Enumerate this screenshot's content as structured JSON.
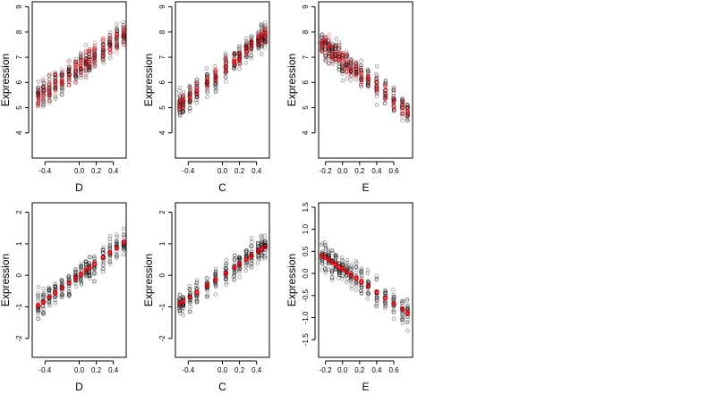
{
  "chart_data": [
    {
      "type": "scatter",
      "xlabel": "D",
      "ylabel": "Expression",
      "xlim": [
        -0.55,
        0.55
      ],
      "ylim": [
        3.0,
        9.2
      ],
      "xticks": [
        "-0.4",
        "0.0",
        "0.2",
        "0.4"
      ],
      "xtick_values": [
        -0.4,
        0,
        0.2,
        0.4
      ],
      "yticks": [
        "4",
        "5",
        "6",
        "7",
        "8",
        "9"
      ],
      "ytick_values": [
        4,
        5,
        6,
        7,
        8,
        9
      ],
      "colors": {
        "observed": "#000000",
        "fitted": "#e8141e"
      },
      "trend": {
        "kind": "linear",
        "intercept": 6.6,
        "slope": 2.4
      },
      "cluster_x": [
        -0.48,
        -0.42,
        -0.35,
        -0.28,
        -0.2,
        -0.12,
        -0.04,
        0.02,
        0.08,
        0.12,
        0.18,
        0.28,
        0.36,
        0.44,
        0.52
      ],
      "observed_spread": 0.85,
      "fitted_spread": 0.75,
      "points_per_cluster": 20
    },
    {
      "type": "scatter",
      "xlabel": "C",
      "ylabel": "Expression",
      "xlim": [
        -0.55,
        0.55
      ],
      "ylim": [
        3.0,
        9.2
      ],
      "xticks": [
        "-0.4",
        "0.0",
        "0.2",
        "0.4"
      ],
      "xtick_values": [
        -0.4,
        0,
        0.2,
        0.4
      ],
      "yticks": [
        "4",
        "5",
        "6",
        "7",
        "8",
        "9"
      ],
      "ytick_values": [
        4,
        5,
        6,
        7,
        8,
        9
      ],
      "colors": {
        "observed": "#000000",
        "fitted": "#e8141e"
      },
      "trend": {
        "kind": "linear",
        "intercept": 6.5,
        "slope": 2.8
      },
      "cluster_x": [
        -0.5,
        -0.46,
        -0.38,
        -0.3,
        -0.18,
        -0.08,
        0.04,
        0.14,
        0.2,
        0.28,
        0.34,
        0.42,
        0.46,
        0.5
      ],
      "observed_spread": 0.8,
      "fitted_spread": 0.5,
      "points_per_cluster": 22
    },
    {
      "type": "scatter",
      "xlabel": "E",
      "ylabel": "Expression",
      "xlim": [
        -0.28,
        0.82
      ],
      "ylim": [
        3.0,
        9.2
      ],
      "xticks": [
        "-0.2",
        "0.0",
        "0.2",
        "0.4",
        "0.6"
      ],
      "xtick_values": [
        -0.2,
        0,
        0.2,
        0.4,
        0.6
      ],
      "yticks": [
        "4",
        "5",
        "6",
        "7",
        "8",
        "9"
      ],
      "ytick_values": [
        4,
        5,
        6,
        7,
        8,
        9
      ],
      "colors": {
        "observed": "#000000",
        "fitted": "#e8141e"
      },
      "trend": {
        "kind": "linear",
        "intercept": 6.9,
        "slope": -2.7
      },
      "cluster_x": [
        -0.24,
        -0.2,
        -0.16,
        -0.12,
        -0.08,
        -0.04,
        0.0,
        0.05,
        0.1,
        0.16,
        0.22,
        0.3,
        0.4,
        0.5,
        0.6,
        0.7,
        0.76
      ],
      "observed_spread": 0.85,
      "fitted_spread": 0.6,
      "points_per_cluster": 18
    },
    {
      "type": "scatter",
      "xlabel": "D",
      "ylabel": "Expression",
      "xlim": [
        -0.55,
        0.55
      ],
      "ylim": [
        -2.6,
        2.3
      ],
      "xticks": [
        "-0.4",
        "0.0",
        "0.2",
        "0.4"
      ],
      "xtick_values": [
        -0.4,
        0,
        0.2,
        0.4
      ],
      "yticks": [
        "-2",
        "-1",
        "0",
        "1",
        "2"
      ],
      "ytick_values": [
        -2,
        -1,
        0,
        1,
        2
      ],
      "colors": {
        "observed": "#000000",
        "fitted": "#e8141e"
      },
      "trend": {
        "kind": "linear",
        "intercept": 0.0,
        "slope": 2.0
      },
      "cluster_x": [
        -0.48,
        -0.42,
        -0.35,
        -0.28,
        -0.2,
        -0.12,
        -0.04,
        0.02,
        0.08,
        0.12,
        0.18,
        0.28,
        0.36,
        0.44,
        0.52
      ],
      "observed_spread": 0.65,
      "fitted_spread": 0.06,
      "points_per_cluster": 20
    },
    {
      "type": "scatter",
      "xlabel": "C",
      "ylabel": "Expression",
      "xlim": [
        -0.55,
        0.55
      ],
      "ylim": [
        -2.6,
        2.3
      ],
      "xticks": [
        "-0.4",
        "0.0",
        "0.2",
        "0.4"
      ],
      "xtick_values": [
        -0.4,
        0,
        0.2,
        0.4
      ],
      "yticks": [
        "-2",
        "-1",
        "0",
        "1",
        "2"
      ],
      "ytick_values": [
        -2,
        -1,
        0,
        1,
        2
      ],
      "colors": {
        "observed": "#000000",
        "fitted": "#e8141e"
      },
      "trend": {
        "kind": "linear",
        "intercept": 0.0,
        "slope": 1.8
      },
      "cluster_x": [
        -0.5,
        -0.46,
        -0.38,
        -0.3,
        -0.18,
        -0.08,
        0.04,
        0.14,
        0.2,
        0.28,
        0.34,
        0.42,
        0.46,
        0.5
      ],
      "observed_spread": 0.6,
      "fitted_spread": 0.06,
      "points_per_cluster": 22
    },
    {
      "type": "scatter",
      "xlabel": "E",
      "ylabel": "Expression",
      "xlim": [
        -0.28,
        0.82
      ],
      "ylim": [
        -1.9,
        1.6
      ],
      "xticks": [
        "-0.2",
        "0.0",
        "0.2",
        "0.4",
        "0.6"
      ],
      "xtick_values": [
        -0.2,
        0,
        0.2,
        0.4,
        0.6
      ],
      "yticks": [
        "-1.5",
        "-1.0",
        "-0.5",
        "0.0",
        "0.5",
        "1.0",
        "1.5"
      ],
      "ytick_values": [
        -1.5,
        -1.0,
        -0.5,
        0.0,
        0.5,
        1.0,
        1.5
      ],
      "colors": {
        "observed": "#000000",
        "fitted": "#e8141e"
      },
      "trend": {
        "kind": "linear",
        "intercept": 0.1,
        "slope": -1.3
      },
      "cluster_x": [
        -0.24,
        -0.2,
        -0.16,
        -0.12,
        -0.08,
        -0.04,
        0.0,
        0.05,
        0.1,
        0.16,
        0.22,
        0.3,
        0.4,
        0.5,
        0.6,
        0.7,
        0.76
      ],
      "observed_spread": 0.5,
      "fitted_spread": 0.05,
      "points_per_cluster": 18
    }
  ]
}
